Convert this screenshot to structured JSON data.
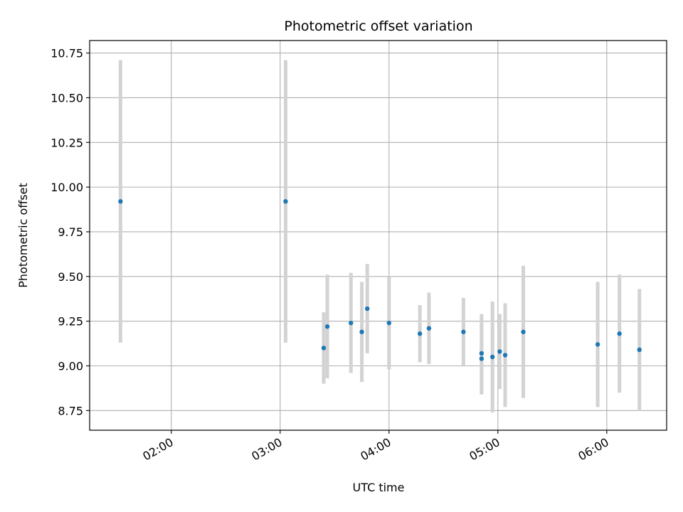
{
  "chart_data": {
    "type": "scatter",
    "title": "Photometric offset variation",
    "xlabel": "UTC time",
    "ylabel": "Photometric offset",
    "x_axis_type": "time",
    "xlim": [
      "01:15",
      "06:33"
    ],
    "ylim": [
      8.64,
      10.82
    ],
    "xticks": [
      "02:00",
      "03:00",
      "04:00",
      "05:00",
      "06:00"
    ],
    "yticks": [
      8.75,
      9.0,
      9.25,
      9.5,
      9.75,
      10.0,
      10.25,
      10.5,
      10.75
    ],
    "ytick_labels": [
      "8.75",
      "9.00",
      "9.25",
      "9.50",
      "9.75",
      "10.00",
      "10.25",
      "10.50",
      "10.75"
    ],
    "grid": true,
    "point_color": "#1f77b4",
    "errorbar_color": "#d3d3d3",
    "series": [
      {
        "points": [
          {
            "x": "01:32",
            "y": 9.92,
            "err": 0.79
          },
          {
            "x": "03:03",
            "y": 9.92,
            "err": 0.79
          },
          {
            "x": "03:24",
            "y": 9.1,
            "err": 0.2
          },
          {
            "x": "03:26",
            "y": 9.22,
            "err": 0.29
          },
          {
            "x": "03:39",
            "y": 9.24,
            "err": 0.28
          },
          {
            "x": "03:45",
            "y": 9.19,
            "err": 0.28
          },
          {
            "x": "03:48",
            "y": 9.32,
            "err": 0.25
          },
          {
            "x": "04:00",
            "y": 9.24,
            "err": 0.26
          },
          {
            "x": "04:17",
            "y": 9.18,
            "err": 0.16
          },
          {
            "x": "04:22",
            "y": 9.21,
            "err": 0.2
          },
          {
            "x": "04:41",
            "y": 9.19,
            "err": 0.19
          },
          {
            "x": "04:51",
            "y": 9.07,
            "err": 0.22
          },
          {
            "x": "04:51",
            "y": 9.04,
            "err": 0.2
          },
          {
            "x": "04:57",
            "y": 9.05,
            "err": 0.31
          },
          {
            "x": "05:01",
            "y": 9.08,
            "err": 0.21
          },
          {
            "x": "05:04",
            "y": 9.06,
            "err": 0.29
          },
          {
            "x": "05:14",
            "y": 9.19,
            "err": 0.37
          },
          {
            "x": "05:55",
            "y": 9.12,
            "err": 0.35
          },
          {
            "x": "06:07",
            "y": 9.18,
            "err": 0.33
          },
          {
            "x": "06:18",
            "y": 9.09,
            "err": 0.34
          }
        ]
      }
    ]
  }
}
